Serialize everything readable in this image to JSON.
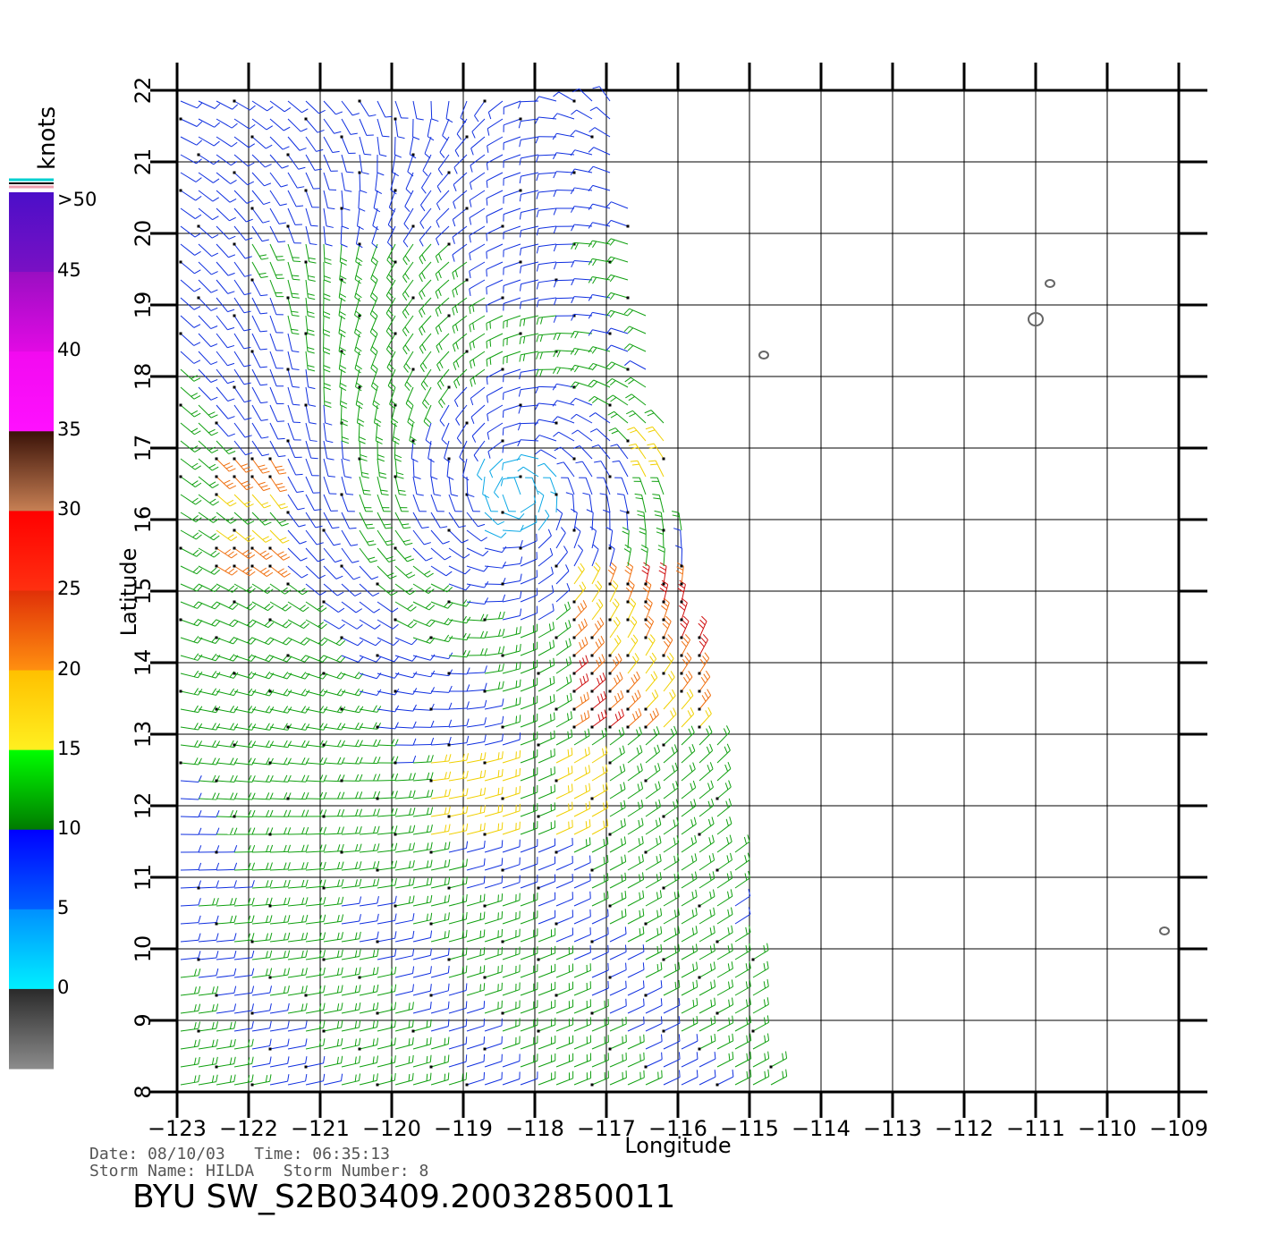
{
  "legend": {
    "unit": "knots",
    "bands": [
      {
        "label": ">50",
        "colors": [
          "#4b0fc8",
          "#7a10c4"
        ]
      },
      {
        "label": "45",
        "colors": [
          "#9a0ec2",
          "#e20ae4"
        ]
      },
      {
        "label": "40",
        "colors": [
          "#f20af0",
          "#ff10ff"
        ]
      },
      {
        "label": "35",
        "colors": [
          "#3a1208",
          "#c88054"
        ]
      },
      {
        "label": "30",
        "colors": [
          "#ff0000",
          "#ff3010"
        ]
      },
      {
        "label": "25",
        "colors": [
          "#e03008",
          "#ff9010"
        ]
      },
      {
        "label": "20",
        "colors": [
          "#ffc000",
          "#fff020"
        ]
      },
      {
        "label": "15",
        "colors": [
          "#00ff00",
          "#007a00"
        ]
      },
      {
        "label": "10",
        "colors": [
          "#0000ff",
          "#0060ff"
        ]
      },
      {
        "label": "5",
        "colors": [
          "#0090ff",
          "#00f0ff"
        ]
      },
      {
        "label": "0",
        "colors": [
          "#2a2a2a",
          "#8c8c8c"
        ]
      }
    ]
  },
  "axes": {
    "xlabel": "Longitude",
    "ylabel": "Latitude",
    "xticks": [
      "−123",
      "−122",
      "−121",
      "−120",
      "−119",
      "−118",
      "−117",
      "−116",
      "−115",
      "−114",
      "−113",
      "−112",
      "−111",
      "−110",
      "−109"
    ],
    "yticks": [
      "8",
      "9",
      "10",
      "11",
      "12",
      "13",
      "14",
      "15",
      "16",
      "17",
      "18",
      "19",
      "20",
      "21",
      "22"
    ],
    "lon_range": [
      -123,
      -109
    ],
    "lat_range": [
      8,
      22
    ]
  },
  "info": {
    "line1": "Date: 08/10/03   Time: 06:35:13",
    "line2": "Storm Name: HILDA   Storm Number: 8",
    "file_id": "BYU SW_S2B03409.20032850011"
  },
  "storm_center": {
    "lon": -118.3,
    "lat": 16.3
  },
  "islands": [
    {
      "lon": -114.8,
      "lat": 18.3
    },
    {
      "lon": -111.0,
      "lat": 18.8
    },
    {
      "lon": -110.8,
      "lat": 19.3
    },
    {
      "lon": -109.2,
      "lat": 10.25
    }
  ]
}
